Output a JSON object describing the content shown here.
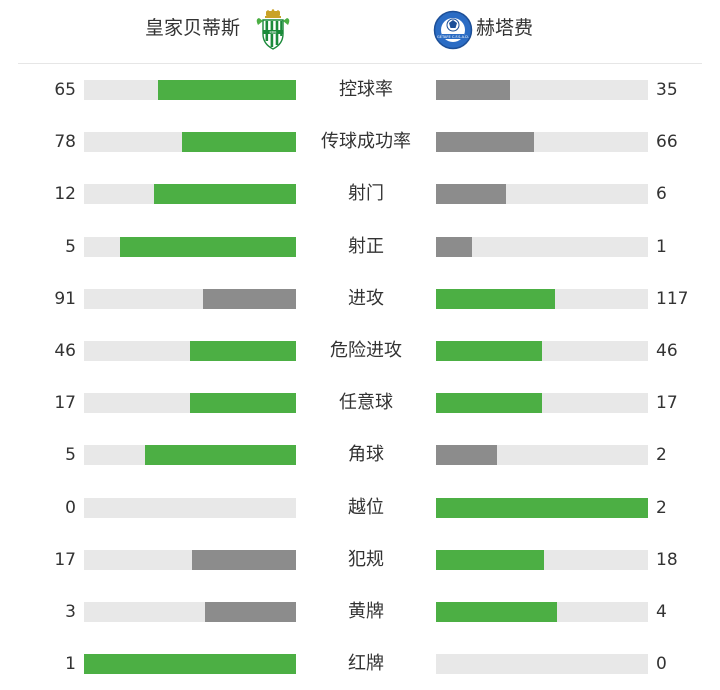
{
  "colors": {
    "win": "#4caf44",
    "lose": "#8c8c8c",
    "track": "#e8e8e8"
  },
  "header": {
    "home_team": "皇家贝蒂斯",
    "away_team": "赫塔费",
    "home_crest_icon": "real-betis-crest-icon",
    "away_crest_icon": "getafe-crest-icon",
    "away_crest_text": "GETAFE C.F.S.A.D."
  },
  "stats": [
    {
      "label": "控球率",
      "home": "65",
      "away": "35",
      "home_fill": 0.65,
      "away_fill": 0.35,
      "home_color": "win",
      "away_color": "lose"
    },
    {
      "label": "传球成功率",
      "home": "78",
      "away": "66",
      "home_fill": 0.54,
      "away_fill": 0.46,
      "home_color": "win",
      "away_color": "lose"
    },
    {
      "label": "射门",
      "home": "12",
      "away": "6",
      "home_fill": 0.67,
      "away_fill": 0.33,
      "home_color": "win",
      "away_color": "lose"
    },
    {
      "label": "射正",
      "home": "5",
      "away": "1",
      "home_fill": 0.83,
      "away_fill": 0.17,
      "home_color": "win",
      "away_color": "lose"
    },
    {
      "label": "进攻",
      "home": "91",
      "away": "117",
      "home_fill": 0.44,
      "away_fill": 0.56,
      "home_color": "lose",
      "away_color": "win"
    },
    {
      "label": "危险进攻",
      "home": "46",
      "away": "46",
      "home_fill": 0.5,
      "away_fill": 0.5,
      "home_color": "win",
      "away_color": "win"
    },
    {
      "label": "任意球",
      "home": "17",
      "away": "17",
      "home_fill": 0.5,
      "away_fill": 0.5,
      "home_color": "win",
      "away_color": "win"
    },
    {
      "label": "角球",
      "home": "5",
      "away": "2",
      "home_fill": 0.71,
      "away_fill": 0.29,
      "home_color": "win",
      "away_color": "lose"
    },
    {
      "label": "越位",
      "home": "0",
      "away": "2",
      "home_fill": 0,
      "away_fill": 1,
      "home_color": "lose",
      "away_color": "win"
    },
    {
      "label": "犯规",
      "home": "17",
      "away": "18",
      "home_fill": 0.49,
      "away_fill": 0.51,
      "home_color": "lose",
      "away_color": "win"
    },
    {
      "label": "黄牌",
      "home": "3",
      "away": "4",
      "home_fill": 0.43,
      "away_fill": 0.57,
      "home_color": "lose",
      "away_color": "win"
    },
    {
      "label": "红牌",
      "home": "1",
      "away": "0",
      "home_fill": 1,
      "away_fill": 0,
      "home_color": "win",
      "away_color": "lose"
    }
  ]
}
